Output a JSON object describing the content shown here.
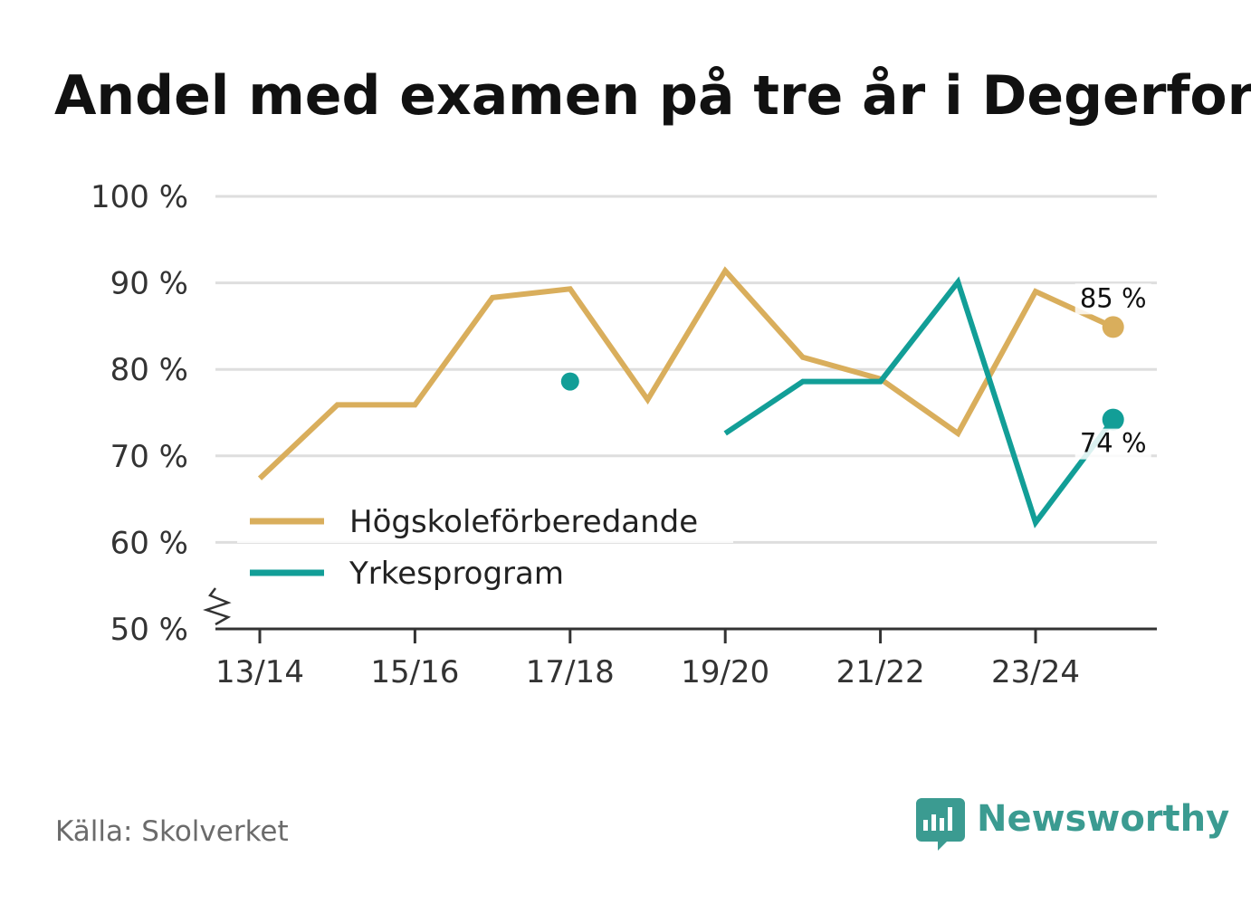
{
  "chart_data": {
    "type": "line",
    "title": "Andel med examen på tre år i Degerfors",
    "xlabel": "",
    "ylabel": "",
    "categories": [
      "13/14",
      "14/15",
      "15/16",
      "16/17",
      "17/18",
      "18/19",
      "19/20",
      "20/21",
      "21/22",
      "22/23",
      "23/24",
      "24/25"
    ],
    "tick_labels": [
      "13/14",
      "15/16",
      "17/18",
      "19/20",
      "21/22",
      "23/24"
    ],
    "y_ticks": [
      50,
      60,
      70,
      80,
      90,
      100
    ],
    "y_tick_labels": [
      "50 %",
      "60 %",
      "70 %",
      "80 %",
      "90 %",
      "100 %"
    ],
    "ylim": [
      50,
      100
    ],
    "y_axis_break": true,
    "grid": true,
    "legend_position": "bottom-left",
    "series": [
      {
        "name": "Högskoleförberedande",
        "color": "#D9AE5C",
        "values": [
          67.4,
          75.9,
          75.9,
          88.3,
          89.3,
          76.5,
          91.4,
          81.4,
          78.9,
          72.6,
          89.0,
          84.9
        ],
        "end_label": "85 %"
      },
      {
        "name": "Yrkesprogram",
        "color": "#129E97",
        "values": [
          null,
          null,
          null,
          null,
          78.6,
          null,
          72.6,
          78.6,
          78.6,
          90.1,
          62.3,
          74.2
        ],
        "end_label": "74 %"
      }
    ]
  },
  "footer": {
    "source": "Källa: Skolverket",
    "brand": "Newsworthy",
    "brand_icon": "bar-chart-speech-bubble-icon"
  }
}
